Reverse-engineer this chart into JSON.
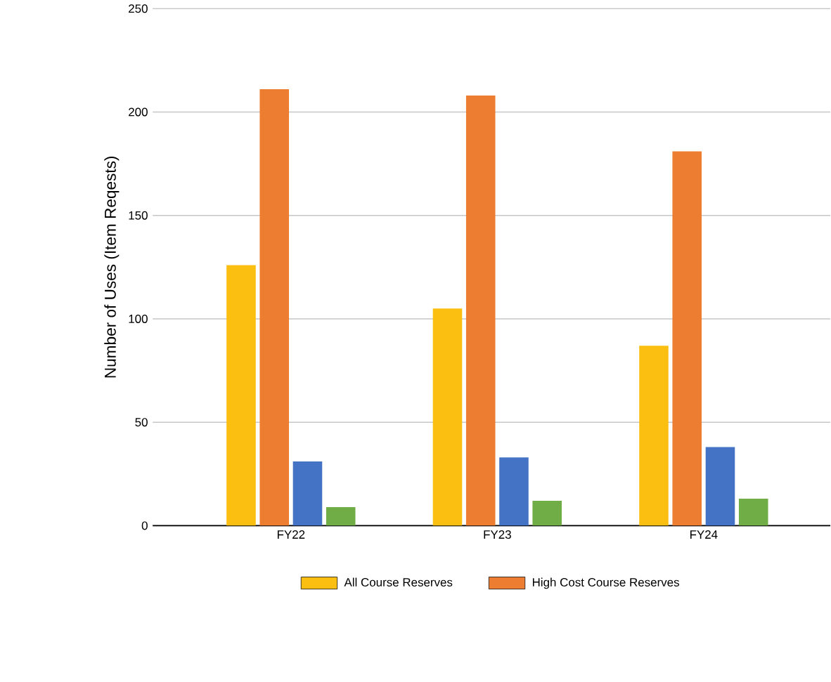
{
  "chart_data": {
    "type": "bar",
    "ylabel": "Number of Uses (Item Reqests)",
    "categories": [
      "FY22",
      "FY23",
      "FY24"
    ],
    "series": [
      {
        "name": "All Course Reserves",
        "color": "#fbbf12",
        "values": [
          126,
          105,
          87
        ]
      },
      {
        "name": "High Cost Course Reserves",
        "color": "#ed7d31",
        "values": [
          211,
          208,
          181
        ]
      },
      {
        "color": "#4472c4",
        "values": [
          31,
          33,
          38
        ]
      },
      {
        "color": "#70ad47",
        "values": [
          9,
          12,
          13
        ]
      }
    ],
    "ylim": [
      0,
      250
    ],
    "yticks": [
      0,
      50,
      100,
      150,
      200,
      250
    ],
    "grid": "y",
    "legend": "bottom"
  }
}
